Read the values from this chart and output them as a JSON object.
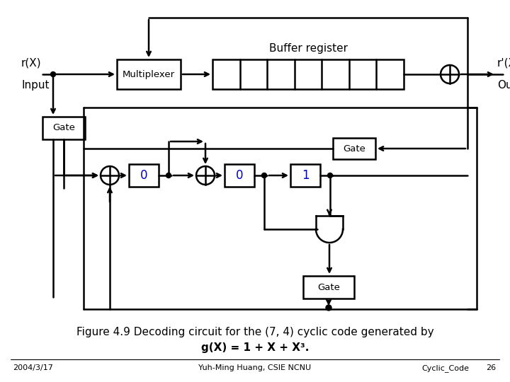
{
  "title_line1": "Figure 4.9 Decoding circuit for the (7, 4) cyclic code generated by",
  "title_line2": "g(X) = 1 + X + X³.",
  "footer_left": "2004/3/17",
  "footer_center": "Yuh-Ming Huang, CSIE NCNU",
  "footer_right": "Cyclic_Code",
  "footer_page": "26",
  "bg_color": "#ffffff",
  "line_color": "#000000",
  "label_color": "#0000cc",
  "text_color": "#000000"
}
